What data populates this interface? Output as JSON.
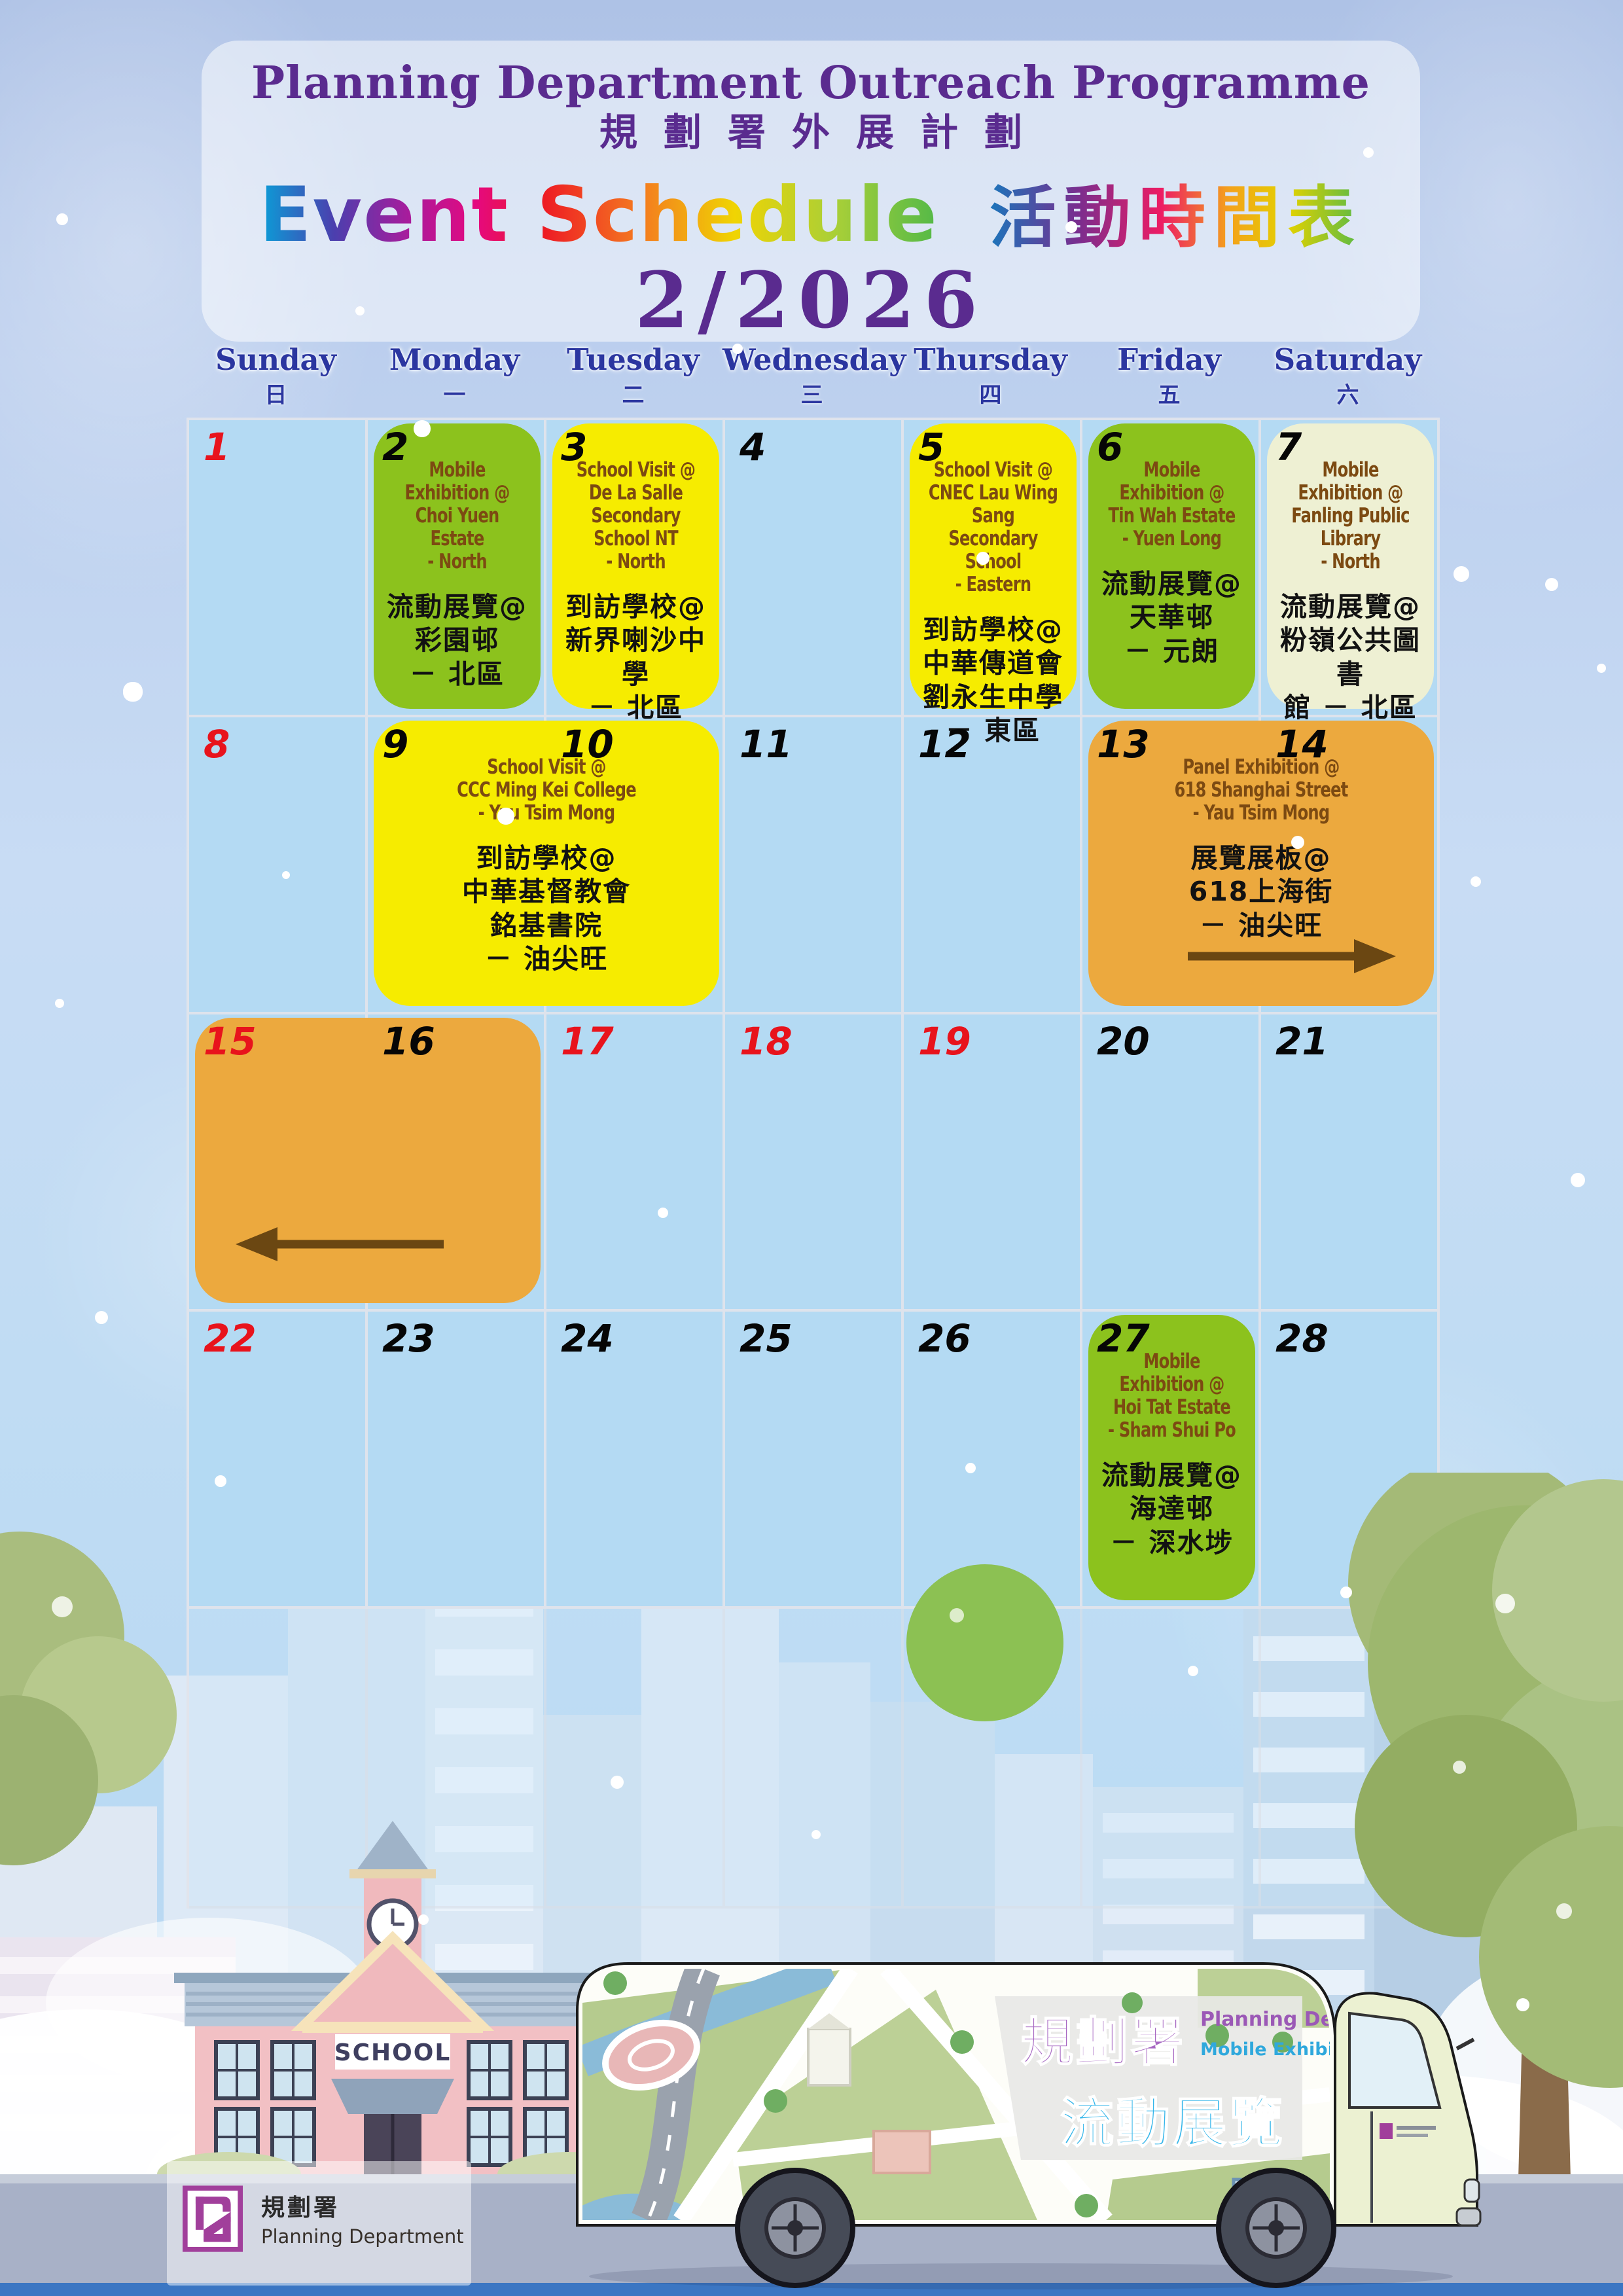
{
  "header": {
    "title_en": "Planning Department Outreach Programme",
    "title_zh": "規劃署外展計劃",
    "schedule_en": "Event Schedule",
    "schedule_zh": "活動時間表",
    "month": "2/2026"
  },
  "weekdays": [
    {
      "en": "Sunday",
      "zh": "日"
    },
    {
      "en": "Monday",
      "zh": "一"
    },
    {
      "en": "Tuesday",
      "zh": "二"
    },
    {
      "en": "Wednesday",
      "zh": "三"
    },
    {
      "en": "Thursday",
      "zh": "四"
    },
    {
      "en": "Friday",
      "zh": "五"
    },
    {
      "en": "Saturday",
      "zh": "六"
    }
  ],
  "calendar": {
    "days_in_month": 28,
    "red_days": [
      1,
      8,
      15,
      17,
      18,
      19,
      22
    ],
    "events": [
      {
        "date": "2",
        "row": 1,
        "col": 2,
        "span": 1,
        "color": "green",
        "en": "Mobile\nExhibition @\nChoi Yuen Estate\n- North",
        "zh": "流動展覽@\n彩園邨\n－ 北區"
      },
      {
        "date": "3",
        "row": 1,
        "col": 3,
        "span": 1,
        "color": "yellow",
        "en": "School Visit @\nDe La Salle\nSecondary School NT\n- North",
        "zh": "到訪學校@\n新界喇沙中學\n－ 北區"
      },
      {
        "date": "5",
        "row": 1,
        "col": 5,
        "span": 1,
        "color": "yellow",
        "en": "School Visit @\nCNEC Lau Wing Sang\nSecondary School\n- Eastern",
        "zh": "到訪學校@\n中華傳道會\n劉永生中學\n－ 東區"
      },
      {
        "date": "6",
        "row": 1,
        "col": 6,
        "span": 1,
        "color": "green",
        "en": "Mobile\nExhibition @\nTin Wah Estate\n- Yuen Long",
        "zh": "流動展覽@\n天華邨\n－ 元朗"
      },
      {
        "date": "7",
        "row": 1,
        "col": 7,
        "span": 1,
        "color": "cream",
        "en": "Mobile\nExhibition @\nFanling Public Library\n- North",
        "zh": "流動展覽@\n粉嶺公共圖書\n館 － 北區"
      },
      {
        "date": "9-10",
        "row": 2,
        "col": 2,
        "span": 2,
        "color": "yellow",
        "en": "School Visit @\nCCC Ming Kei College\n- Yau Tsim Mong",
        "zh": "到訪學校@\n中華基督教會\n銘基書院\n－ 油尖旺"
      },
      {
        "date": "13-14",
        "row": 2,
        "col": 6,
        "span": 2,
        "color": "orange",
        "arrow": "right",
        "en": "Panel Exhibition @\n618 Shanghai Street\n- Yau Tsim Mong",
        "zh": "展覽展板@\n618上海街\n－ 油尖旺"
      },
      {
        "date": "15-16",
        "row": 3,
        "col": 1,
        "span": 2,
        "color": "orange",
        "arrow": "left",
        "en": "",
        "zh": ""
      },
      {
        "date": "27",
        "row": 4,
        "col": 6,
        "span": 1,
        "color": "green",
        "en": "Mobile\nExhibition @\nHoi Tat Estate\n- Sham Shui Po",
        "zh": "流動展覽@\n海達邨\n－ 深水埗"
      }
    ]
  },
  "colors": {
    "green": "#8cc21d",
    "yellow": "#f6ec00",
    "cream": "#eef0d3",
    "orange": "#eca93e",
    "holiday_red": "#e8131c",
    "event_text_en": "#7c4a12",
    "event_text_zh": "#121212",
    "title_purple": "#5a2b8f",
    "weekday_blue": "#2b36a0"
  },
  "scene": {
    "school_sign": "SCHOOL",
    "truck": {
      "zh_name": "規劃署",
      "zh_service": "流動展覽",
      "en_name": "Planning Department",
      "en_service": "Mobile Exhibition"
    }
  },
  "footer": {
    "dept_zh": "規劃署",
    "dept_en": "Planning Department"
  }
}
